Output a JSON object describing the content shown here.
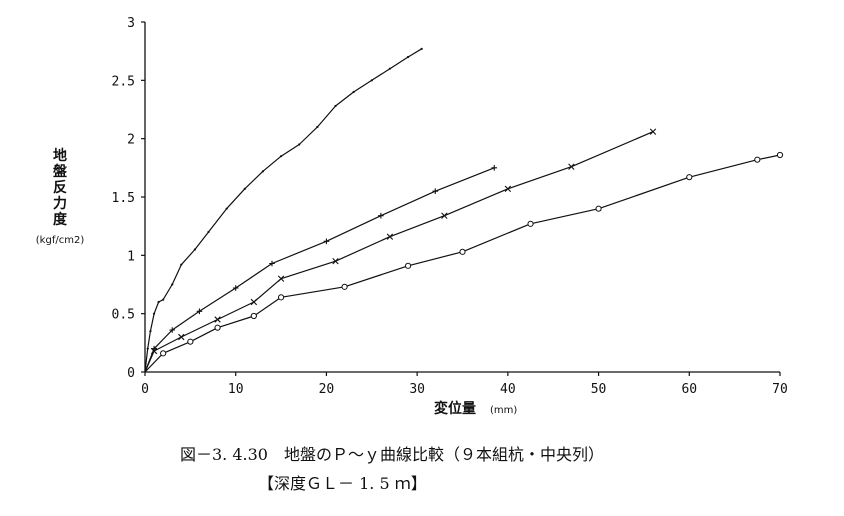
{
  "chart_data": {
    "type": "line",
    "title": "",
    "xlabel": "変位量",
    "xlabel_unit": "(mm)",
    "ylabel_chars": [
      "地",
      "盤",
      "反",
      "力",
      "度"
    ],
    "ylabel_unit": "(kgf/cm2)",
    "xlim": [
      0,
      70
    ],
    "ylim": [
      0,
      3
    ],
    "x_ticks": [
      "0",
      "10",
      "20",
      "30",
      "40",
      "50",
      "60",
      "70"
    ],
    "x_tick_values": [
      0,
      10,
      20,
      30,
      40,
      50,
      60,
      70
    ],
    "y_ticks": [
      "0",
      "0.5",
      "1",
      "1.5",
      "2",
      "2.5",
      "3"
    ],
    "y_tick_values": [
      0,
      0.5,
      1,
      1.5,
      2,
      2.5,
      3
    ],
    "grid": false,
    "series": [
      {
        "marker": "dot",
        "points": [
          [
            0,
            0
          ],
          [
            0.3,
            0.2
          ],
          [
            0.6,
            0.35
          ],
          [
            1,
            0.5
          ],
          [
            1.5,
            0.6
          ],
          [
            2,
            0.62
          ],
          [
            3,
            0.75
          ],
          [
            4,
            0.92
          ],
          [
            5.5,
            1.05
          ],
          [
            7,
            1.2
          ],
          [
            9,
            1.4
          ],
          [
            11,
            1.57
          ],
          [
            13,
            1.72
          ],
          [
            15,
            1.85
          ],
          [
            17,
            1.95
          ],
          [
            19,
            2.1
          ],
          [
            21,
            2.28
          ],
          [
            23,
            2.4
          ],
          [
            25,
            2.5
          ],
          [
            27,
            2.6
          ],
          [
            29,
            2.7
          ],
          [
            30.5,
            2.77
          ]
        ]
      },
      {
        "marker": "plus",
        "points": [
          [
            0,
            0
          ],
          [
            1,
            0.2
          ],
          [
            3,
            0.36
          ],
          [
            6,
            0.52
          ],
          [
            10,
            0.72
          ],
          [
            14,
            0.93
          ],
          [
            20,
            1.12
          ],
          [
            26,
            1.34
          ],
          [
            32,
            1.55
          ],
          [
            38.5,
            1.75
          ]
        ]
      },
      {
        "marker": "x",
        "points": [
          [
            0,
            0
          ],
          [
            1,
            0.18
          ],
          [
            4,
            0.3
          ],
          [
            8,
            0.45
          ],
          [
            12,
            0.6
          ],
          [
            15,
            0.8
          ],
          [
            21,
            0.95
          ],
          [
            27,
            1.16
          ],
          [
            33,
            1.34
          ],
          [
            40,
            1.57
          ],
          [
            47,
            1.76
          ],
          [
            56,
            2.06
          ]
        ]
      },
      {
        "marker": "circle",
        "points": [
          [
            0,
            0
          ],
          [
            2,
            0.16
          ],
          [
            5,
            0.26
          ],
          [
            8,
            0.38
          ],
          [
            12,
            0.48
          ],
          [
            15,
            0.64
          ],
          [
            22,
            0.73
          ],
          [
            29,
            0.91
          ],
          [
            35,
            1.03
          ],
          [
            42.5,
            1.27
          ],
          [
            50,
            1.4
          ],
          [
            60,
            1.67
          ],
          [
            67.5,
            1.82
          ],
          [
            70,
            1.86
          ]
        ]
      }
    ]
  },
  "caption": {
    "line1": "図－3. 4.30　地盤のＰ～ｙ曲線比較（９本組杭・中央列）",
    "line2": "【深度ＧＬ－ 1. 5 ｍ】"
  }
}
